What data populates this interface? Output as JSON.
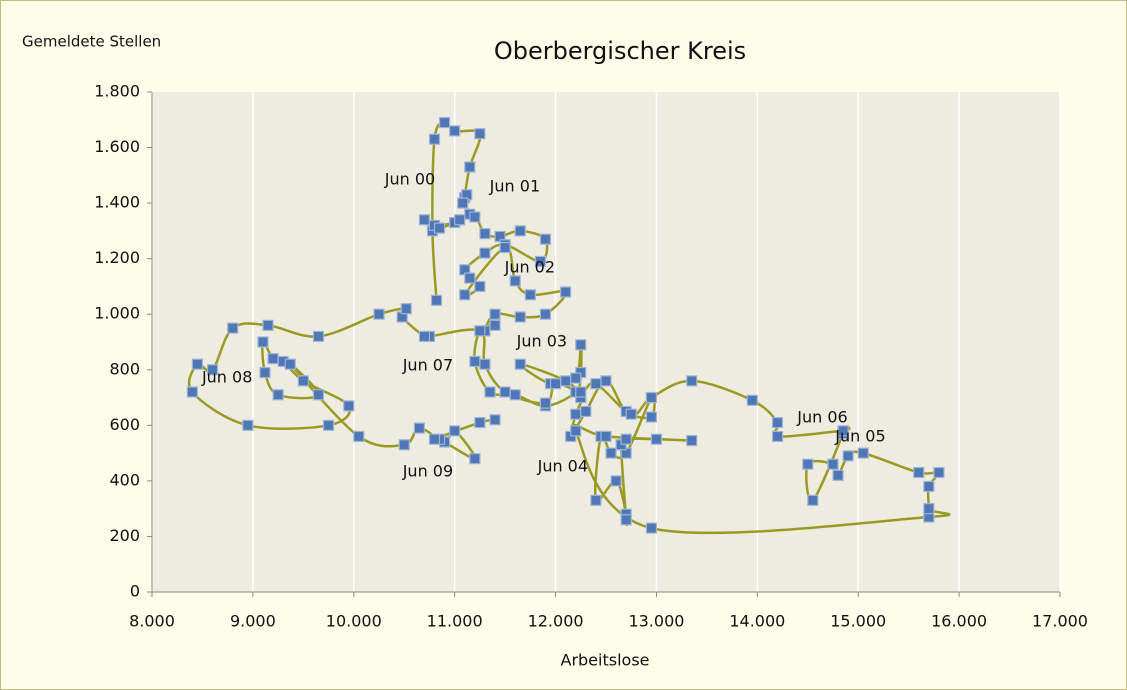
{
  "chart_data": {
    "type": "scatter",
    "title": "Oberbergischer Kreis",
    "y_label": "Gemeldete Stellen",
    "x_label": "Arbeitslose",
    "xlim": [
      8000,
      17000
    ],
    "ylim": [
      0,
      1800
    ],
    "xticks": [
      {
        "value": 8000,
        "label": "8.000"
      },
      {
        "value": 9000,
        "label": "9.000"
      },
      {
        "value": 10000,
        "label": "10.000"
      },
      {
        "value": 11000,
        "label": "11.000"
      },
      {
        "value": 12000,
        "label": "12.000"
      },
      {
        "value": 13000,
        "label": "13.000"
      },
      {
        "value": 14000,
        "label": "14.000"
      },
      {
        "value": 15000,
        "label": "15.000"
      },
      {
        "value": 16000,
        "label": "16.000"
      },
      {
        "value": 17000,
        "label": "17.000"
      }
    ],
    "yticks": [
      0,
      200,
      400,
      600,
      800,
      {
        "value": 1000,
        "label": "1.000"
      },
      {
        "value": 1200,
        "label": "1.200"
      },
      {
        "value": 1400,
        "label": "1.400"
      },
      {
        "value": 1600,
        "label": "1.600"
      },
      {
        "value": 1800,
        "label": "1.800"
      }
    ],
    "grid": true,
    "line_color": "#9a9a22",
    "series": [
      {
        "color": "#4f76b5",
        "x": [
          10820,
          10780,
          10800,
          10900,
          11000,
          11250,
          11150,
          11100,
          11120,
          11080,
          11150,
          11000,
          10800,
          10700,
          10850,
          11050,
          11200,
          11300,
          11450,
          11650,
          11900,
          11850,
          11500,
          11300,
          11100,
          11150,
          11250,
          11100,
          11500,
          11600,
          11750,
          12100,
          11900,
          11650,
          11400,
          11300,
          11400,
          11250,
          11200,
          11350,
          11600,
          11900,
          12200,
          12250,
          12250,
          12200,
          11950,
          11650,
          12100,
          12250,
          12200,
          12150,
          12300,
          12500,
          12700,
          12950,
          12950,
          12700,
          12550,
          12450,
          12400,
          12600,
          12700,
          12700,
          12650,
          12700,
          13000,
          13350,
          12500,
          12200,
          12950,
          15700,
          15700,
          15700,
          15800,
          15600,
          15050,
          14900,
          14800,
          14750,
          14500,
          14550,
          14850,
          14850,
          14200,
          14200,
          13950,
          13350,
          12950,
          12750,
          12400,
          12250,
          12000,
          11900,
          11500,
          11300,
          11250,
          10750,
          10700,
          10480,
          10520,
          10250,
          9650,
          9150,
          8800,
          8600,
          8450,
          8400,
          8950,
          9750,
          9950,
          9500,
          9300,
          9200,
          9100,
          9120,
          9250,
          9650,
          9370,
          10050,
          10500,
          10650,
          10900,
          11000,
          11200,
          10850,
          10800,
          11250,
          11400
        ],
        "y": [
          1050,
          1300,
          1630,
          1690,
          1660,
          1650,
          1530,
          1420,
          1430,
          1400,
          1360,
          1330,
          1320,
          1340,
          1310,
          1340,
          1350,
          1290,
          1280,
          1300,
          1270,
          1190,
          1250,
          1220,
          1160,
          1130,
          1100,
          1070,
          1240,
          1120,
          1070,
          1080,
          1000,
          990,
          1000,
          940,
          960,
          940,
          830,
          720,
          710,
          670,
          720,
          790,
          890,
          770,
          750,
          820,
          760,
          700,
          640,
          560,
          650,
          760,
          650,
          630,
          700,
          500,
          500,
          560,
          330,
          400,
          280,
          260,
          530,
          550,
          550,
          545,
          560,
          580,
          230,
          270,
          300,
          380,
          430,
          430,
          500,
          490,
          420,
          460,
          460,
          330,
          570,
          580,
          560,
          610,
          690,
          760,
          700,
          640,
          750,
          720,
          750,
          680,
          720,
          820,
          940,
          920,
          920,
          990,
          1020,
          1000,
          920,
          960,
          950,
          800,
          820,
          720,
          600,
          600,
          670,
          760,
          830,
          840,
          900,
          790,
          710,
          710,
          820,
          560,
          530,
          590,
          540,
          580,
          480,
          550,
          550,
          610,
          620
        ]
      }
    ],
    "annotations": [
      {
        "text": "Jun 00",
        "x": 10307,
        "y": 1483
      },
      {
        "text": "Jun 01",
        "x": 11347,
        "y": 1458
      },
      {
        "text": "Jun 02",
        "x": 11495,
        "y": 1166
      },
      {
        "text": "Jun 03",
        "x": 11614,
        "y": 900
      },
      {
        "text": "Jun 07",
        "x": 10485,
        "y": 814
      },
      {
        "text": "Jun 08",
        "x": 8495,
        "y": 770
      },
      {
        "text": "Jun 09",
        "x": 10485,
        "y": 432
      },
      {
        "text": "Jun 04",
        "x": 11822,
        "y": 450
      },
      {
        "text": "Jun 06",
        "x": 14396,
        "y": 626
      },
      {
        "text": "Jun 05",
        "x": 14772,
        "y": 558
      }
    ]
  }
}
